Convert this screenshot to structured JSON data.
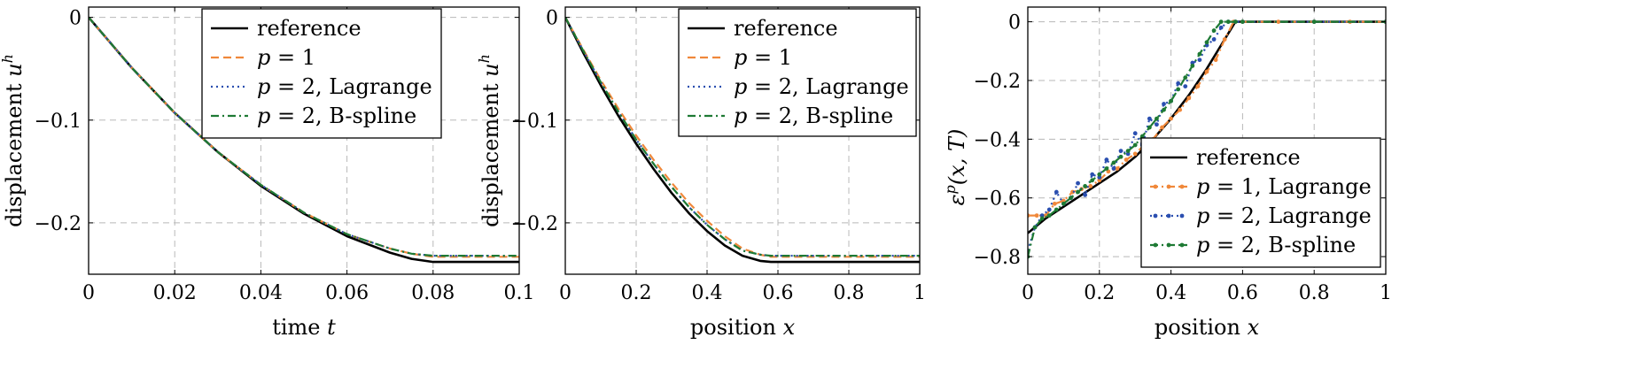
{
  "colors": {
    "reference": "#000000",
    "p1": "#f0883a",
    "p2_lagrange": "#2b4fb0",
    "p2_bspline": "#1e7a34",
    "grid": "#b8b8b8"
  },
  "chart_data": [
    {
      "type": "line",
      "xlabel_text": "time ",
      "xlabel_var": "t",
      "ylabel_text": "displacement ",
      "ylabel_var": "u",
      "ylabel_sup": "h",
      "xlim": [
        0,
        0.1
      ],
      "ylim": [
        -0.25,
        0.01
      ],
      "xticks": [
        0,
        0.02,
        0.04,
        0.06,
        0.08,
        0.1
      ],
      "xtick_labels": [
        "0",
        "0.02",
        "0.04",
        "0.06",
        "0.08",
        "0.1"
      ],
      "yticks": [
        0,
        -0.1,
        -0.2
      ],
      "ytick_labels": [
        "0",
        "−0.1",
        "−0.2"
      ],
      "grid": true,
      "legend_position": "top-right",
      "legend": [
        {
          "key": "reference",
          "style": "solid",
          "segments": [
            {
              "text": "reference",
              "italic": false
            }
          ]
        },
        {
          "key": "p1",
          "style": "dashed",
          "segments": [
            {
              "text": "p",
              "italic": true
            },
            {
              "text": " = 1",
              "italic": false
            }
          ]
        },
        {
          "key": "p2_lagrange",
          "style": "dotted",
          "segments": [
            {
              "text": "p",
              "italic": true
            },
            {
              "text": " = 2, Lagrange",
              "italic": false
            }
          ]
        },
        {
          "key": "p2_bspline",
          "style": "dashdot",
          "segments": [
            {
              "text": "p",
              "italic": true
            },
            {
              "text": " = 2, B-spline",
              "italic": false
            }
          ]
        }
      ],
      "series": [
        {
          "key": "reference",
          "style": "solid",
          "x": [
            0,
            0.01,
            0.02,
            0.03,
            0.04,
            0.05,
            0.06,
            0.07,
            0.075,
            0.08,
            0.09,
            0.1
          ],
          "y": [
            0,
            -0.049,
            -0.093,
            -0.131,
            -0.164,
            -0.191,
            -0.213,
            -0.229,
            -0.235,
            -0.238,
            -0.238,
            -0.238
          ]
        },
        {
          "key": "p1",
          "style": "dashed",
          "x": [
            0,
            0.01,
            0.02,
            0.03,
            0.04,
            0.05,
            0.06,
            0.07,
            0.075,
            0.08,
            0.09,
            0.1
          ],
          "y": [
            0,
            -0.049,
            -0.093,
            -0.131,
            -0.163,
            -0.19,
            -0.211,
            -0.225,
            -0.23,
            -0.233,
            -0.233,
            -0.233
          ]
        },
        {
          "key": "p2_lagrange",
          "style": "dotted",
          "x": [
            0,
            0.01,
            0.02,
            0.03,
            0.04,
            0.05,
            0.06,
            0.07,
            0.075,
            0.08,
            0.09,
            0.1
          ],
          "y": [
            0,
            -0.049,
            -0.093,
            -0.131,
            -0.163,
            -0.19,
            -0.211,
            -0.225,
            -0.23,
            -0.232,
            -0.232,
            -0.232
          ]
        },
        {
          "key": "p2_bspline",
          "style": "dashdot",
          "x": [
            0,
            0.01,
            0.02,
            0.03,
            0.04,
            0.05,
            0.06,
            0.07,
            0.075,
            0.08,
            0.09,
            0.1
          ],
          "y": [
            0,
            -0.049,
            -0.093,
            -0.131,
            -0.163,
            -0.19,
            -0.211,
            -0.225,
            -0.23,
            -0.232,
            -0.232,
            -0.232
          ]
        }
      ]
    },
    {
      "type": "line",
      "xlabel_text": "position ",
      "xlabel_var": "x",
      "ylabel_text": "displacement ",
      "ylabel_var": "u",
      "ylabel_sup": "h",
      "xlim": [
        0,
        1
      ],
      "ylim": [
        -0.25,
        0.01
      ],
      "xticks": [
        0,
        0.2,
        0.4,
        0.6,
        0.8,
        1
      ],
      "xtick_labels": [
        "0",
        "0.2",
        "0.4",
        "0.6",
        "0.8",
        "1"
      ],
      "yticks": [
        0,
        -0.1,
        -0.2
      ],
      "ytick_labels": [
        "0",
        "−0.1",
        "−0.2"
      ],
      "grid": true,
      "legend_position": "top-right",
      "legend": [
        {
          "key": "reference",
          "style": "solid",
          "segments": [
            {
              "text": "reference",
              "italic": false
            }
          ]
        },
        {
          "key": "p1",
          "style": "dashed",
          "segments": [
            {
              "text": "p",
              "italic": true
            },
            {
              "text": " = 1",
              "italic": false
            }
          ]
        },
        {
          "key": "p2_lagrange",
          "style": "dotted",
          "segments": [
            {
              "text": "p",
              "italic": true
            },
            {
              "text": " = 2, Lagrange",
              "italic": false
            }
          ]
        },
        {
          "key": "p2_bspline",
          "style": "dashdot",
          "segments": [
            {
              "text": "p",
              "italic": true
            },
            {
              "text": " = 2, B-spline",
              "italic": false
            }
          ]
        }
      ],
      "series": [
        {
          "key": "reference",
          "style": "solid",
          "x": [
            0,
            0.05,
            0.1,
            0.15,
            0.2,
            0.25,
            0.3,
            0.35,
            0.4,
            0.45,
            0.5,
            0.55,
            0.58,
            0.6,
            0.8,
            1.0
          ],
          "y": [
            0,
            -0.034,
            -0.066,
            -0.096,
            -0.123,
            -0.148,
            -0.171,
            -0.191,
            -0.208,
            -0.222,
            -0.232,
            -0.237,
            -0.238,
            -0.238,
            -0.238,
            -0.238
          ]
        },
        {
          "key": "p1",
          "style": "dashed",
          "x": [
            0,
            0.05,
            0.1,
            0.15,
            0.2,
            0.25,
            0.3,
            0.35,
            0.4,
            0.45,
            0.5,
            0.55,
            0.58,
            0.6,
            0.8,
            1.0
          ],
          "y": [
            0,
            -0.031,
            -0.061,
            -0.089,
            -0.115,
            -0.139,
            -0.161,
            -0.181,
            -0.198,
            -0.213,
            -0.225,
            -0.231,
            -0.233,
            -0.233,
            -0.233,
            -0.233
          ]
        },
        {
          "key": "p2_lagrange",
          "style": "dotted",
          "x": [
            0,
            0.05,
            0.1,
            0.15,
            0.2,
            0.25,
            0.3,
            0.35,
            0.4,
            0.45,
            0.5,
            0.55,
            0.58,
            0.6,
            0.8,
            1.0
          ],
          "y": [
            0,
            -0.032,
            -0.063,
            -0.092,
            -0.119,
            -0.143,
            -0.165,
            -0.185,
            -0.202,
            -0.216,
            -0.227,
            -0.231,
            -0.232,
            -0.232,
            -0.232,
            -0.232
          ]
        },
        {
          "key": "p2_bspline",
          "style": "dashdot",
          "x": [
            0,
            0.05,
            0.1,
            0.15,
            0.2,
            0.25,
            0.3,
            0.35,
            0.4,
            0.45,
            0.5,
            0.55,
            0.58,
            0.6,
            0.8,
            1.0
          ],
          "y": [
            0,
            -0.032,
            -0.063,
            -0.092,
            -0.119,
            -0.143,
            -0.165,
            -0.185,
            -0.202,
            -0.216,
            -0.227,
            -0.231,
            -0.232,
            -0.232,
            -0.232,
            -0.232
          ]
        }
      ]
    },
    {
      "type": "line",
      "xlabel_text": "position ",
      "xlabel_var": "x",
      "ylabel_text": "",
      "ylabel_var": "ε",
      "ylabel_sup": "p",
      "ylabel_rest": "(x, T)",
      "xlim": [
        0,
        1
      ],
      "ylim": [
        -0.86,
        0.05
      ],
      "xticks": [
        0,
        0.2,
        0.4,
        0.6,
        0.8,
        1
      ],
      "xtick_labels": [
        "0",
        "0.2",
        "0.4",
        "0.6",
        "0.8",
        "1"
      ],
      "yticks": [
        0,
        -0.2,
        -0.4,
        -0.6,
        -0.8
      ],
      "ytick_labels": [
        "0",
        "−0.2",
        "−0.4",
        "−0.6",
        "−0.8"
      ],
      "grid": true,
      "legend_position": "bottom-right",
      "legend": [
        {
          "key": "reference",
          "style": "solid",
          "markers": false,
          "segments": [
            {
              "text": "reference",
              "italic": false
            }
          ]
        },
        {
          "key": "p1",
          "style": "dashdot",
          "markers": true,
          "segments": [
            {
              "text": "p",
              "italic": true
            },
            {
              "text": " = 1, Lagrange",
              "italic": false
            }
          ]
        },
        {
          "key": "p2_lagrange",
          "style": "dotted",
          "markers": true,
          "segments": [
            {
              "text": "p",
              "italic": true
            },
            {
              "text": " = 2, Lagrange",
              "italic": false
            }
          ]
        },
        {
          "key": "p2_bspline",
          "style": "dashdot",
          "markers": true,
          "segments": [
            {
              "text": "p",
              "italic": true
            },
            {
              "text": " = 2, B-spline",
              "italic": false
            }
          ]
        }
      ],
      "series": [
        {
          "key": "reference",
          "style": "solid",
          "markers": false,
          "x": [
            0,
            0.02,
            0.05,
            0.1,
            0.15,
            0.2,
            0.25,
            0.3,
            0.35,
            0.4,
            0.45,
            0.5,
            0.55,
            0.58,
            0.6,
            0.8,
            1.0
          ],
          "y": [
            -0.72,
            -0.7,
            -0.67,
            -0.63,
            -0.59,
            -0.55,
            -0.51,
            -0.46,
            -0.4,
            -0.33,
            -0.25,
            -0.16,
            -0.06,
            0.0,
            0.0,
            0.0,
            0.0
          ]
        },
        {
          "key": "p1",
          "style": "dashdot",
          "markers": true,
          "x": [
            0,
            0.025,
            0.05,
            0.075,
            0.1,
            0.125,
            0.15,
            0.175,
            0.2,
            0.225,
            0.25,
            0.275,
            0.3,
            0.325,
            0.35,
            0.375,
            0.4,
            0.425,
            0.45,
            0.475,
            0.5,
            0.525,
            0.55,
            0.575,
            0.6,
            0.7,
            0.8,
            0.9,
            1.0
          ],
          "y": [
            -0.66,
            -0.66,
            -0.66,
            -0.62,
            -0.61,
            -0.58,
            -0.57,
            -0.56,
            -0.54,
            -0.51,
            -0.5,
            -0.47,
            -0.45,
            -0.42,
            -0.4,
            -0.36,
            -0.33,
            -0.3,
            -0.26,
            -0.22,
            -0.17,
            -0.13,
            -0.06,
            0.0,
            0.0,
            0.0,
            0.0,
            0.0,
            0.0
          ]
        },
        {
          "key": "p2_lagrange",
          "style": "dotted",
          "markers": true,
          "x": [
            0,
            0.02,
            0.04,
            0.06,
            0.08,
            0.1,
            0.12,
            0.14,
            0.16,
            0.18,
            0.2,
            0.22,
            0.24,
            0.26,
            0.28,
            0.3,
            0.32,
            0.34,
            0.36,
            0.38,
            0.4,
            0.42,
            0.44,
            0.46,
            0.48,
            0.5,
            0.52,
            0.54,
            0.56,
            0.58,
            0.6,
            0.8,
            1.0
          ],
          "y": [
            -0.78,
            -0.7,
            -0.66,
            -0.64,
            -0.58,
            -0.62,
            -0.6,
            -0.55,
            -0.59,
            -0.52,
            -0.53,
            -0.47,
            -0.5,
            -0.44,
            -0.45,
            -0.38,
            -0.42,
            -0.33,
            -0.35,
            -0.28,
            -0.27,
            -0.21,
            -0.22,
            -0.14,
            -0.13,
            -0.08,
            -0.06,
            -0.02,
            0.0,
            0.0,
            0.0,
            0.0,
            0.0
          ]
        },
        {
          "key": "p2_bspline",
          "style": "dashdot",
          "markers": true,
          "x": [
            0,
            0.02,
            0.04,
            0.06,
            0.08,
            0.1,
            0.12,
            0.14,
            0.16,
            0.18,
            0.2,
            0.22,
            0.24,
            0.26,
            0.28,
            0.3,
            0.32,
            0.34,
            0.36,
            0.38,
            0.4,
            0.42,
            0.44,
            0.46,
            0.48,
            0.5,
            0.52,
            0.54,
            0.56,
            0.58,
            0.6,
            0.8,
            1.0
          ],
          "y": [
            -0.8,
            -0.7,
            -0.67,
            -0.66,
            -0.64,
            -0.62,
            -0.6,
            -0.58,
            -0.56,
            -0.54,
            -0.52,
            -0.5,
            -0.48,
            -0.46,
            -0.44,
            -0.42,
            -0.39,
            -0.36,
            -0.33,
            -0.3,
            -0.27,
            -0.23,
            -0.19,
            -0.15,
            -0.11,
            -0.07,
            -0.03,
            0.0,
            0.0,
            0.0,
            0.0,
            0.0,
            0.0
          ]
        }
      ]
    }
  ]
}
